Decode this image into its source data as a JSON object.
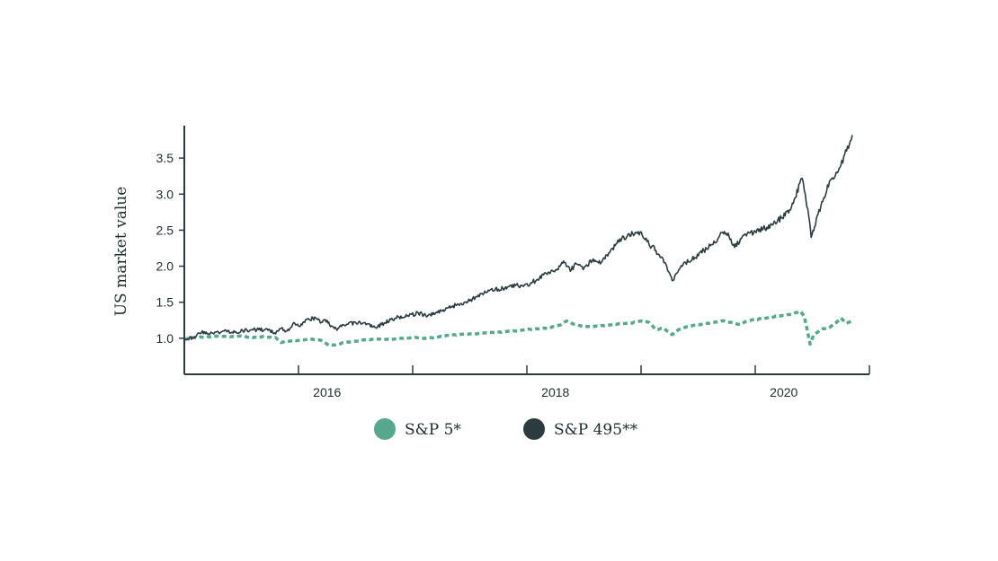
{
  "colors": {
    "sp5": "#55a88e",
    "sp495": "#2c3b3f",
    "axis": "#2c3b3f",
    "background": "#ffffff"
  },
  "chart_data": {
    "type": "line",
    "title": "",
    "xlabel": "",
    "ylabel": "US market value",
    "xlim": [
      2014.75,
      2020.75
    ],
    "ylim": [
      0.5,
      3.95
    ],
    "y_ticks": [
      1.0,
      1.5,
      2.0,
      2.5,
      3.0,
      3.5
    ],
    "y_tick_labels": [
      "1.0",
      "1.5",
      "2.0",
      "2.5",
      "3.0",
      "3.5"
    ],
    "x_ticks": [
      2015.75,
      2016.75,
      2017.75,
      2018.75,
      2019.75,
      2020.75
    ],
    "x_tick_labels": [
      {
        "value": 2016,
        "label": "2016"
      },
      {
        "value": 2018,
        "label": "2018"
      },
      {
        "value": 2020,
        "label": "2020"
      }
    ],
    "grid": false,
    "legend_position": "bottom-center",
    "legend": [
      "S&P 5*",
      "S&P 495**"
    ],
    "series": [
      {
        "name": "S&P 5*",
        "style": "dashed",
        "color": "#55a88e",
        "points": [
          [
            2014.75,
            0.99
          ],
          [
            2014.85,
            1.01
          ],
          [
            2014.95,
            1.02
          ],
          [
            2015.05,
            1.03
          ],
          [
            2015.15,
            1.02
          ],
          [
            2015.25,
            1.03
          ],
          [
            2015.35,
            1.01
          ],
          [
            2015.45,
            1.02
          ],
          [
            2015.55,
            1.01
          ],
          [
            2015.6,
            0.94
          ],
          [
            2015.65,
            0.96
          ],
          [
            2015.75,
            0.97
          ],
          [
            2015.85,
            0.99
          ],
          [
            2015.95,
            0.97
          ],
          [
            2016.02,
            0.9
          ],
          [
            2016.08,
            0.91
          ],
          [
            2016.15,
            0.94
          ],
          [
            2016.25,
            0.96
          ],
          [
            2016.35,
            0.98
          ],
          [
            2016.45,
            0.99
          ],
          [
            2016.55,
            0.98
          ],
          [
            2016.65,
            1.0
          ],
          [
            2016.75,
            1.01
          ],
          [
            2016.85,
            1.0
          ],
          [
            2016.95,
            1.01
          ],
          [
            2017.05,
            1.04
          ],
          [
            2017.15,
            1.05
          ],
          [
            2017.25,
            1.06
          ],
          [
            2017.35,
            1.07
          ],
          [
            2017.45,
            1.08
          ],
          [
            2017.55,
            1.09
          ],
          [
            2017.65,
            1.1
          ],
          [
            2017.75,
            1.12
          ],
          [
            2017.85,
            1.13
          ],
          [
            2017.95,
            1.14
          ],
          [
            2018.0,
            1.17
          ],
          [
            2018.05,
            1.19
          ],
          [
            2018.1,
            1.24
          ],
          [
            2018.15,
            1.2
          ],
          [
            2018.2,
            1.18
          ],
          [
            2018.25,
            1.16
          ],
          [
            2018.35,
            1.17
          ],
          [
            2018.45,
            1.18
          ],
          [
            2018.55,
            1.2
          ],
          [
            2018.65,
            1.21
          ],
          [
            2018.75,
            1.24
          ],
          [
            2018.82,
            1.22
          ],
          [
            2018.88,
            1.12
          ],
          [
            2018.95,
            1.14
          ],
          [
            2019.02,
            1.05
          ],
          [
            2019.08,
            1.12
          ],
          [
            2019.15,
            1.16
          ],
          [
            2019.25,
            1.19
          ],
          [
            2019.35,
            1.21
          ],
          [
            2019.45,
            1.24
          ],
          [
            2019.55,
            1.22
          ],
          [
            2019.62,
            1.19
          ],
          [
            2019.68,
            1.24
          ],
          [
            2019.75,
            1.26
          ],
          [
            2019.85,
            1.28
          ],
          [
            2019.95,
            1.31
          ],
          [
            2020.05,
            1.33
          ],
          [
            2020.12,
            1.36
          ],
          [
            2020.15,
            1.37
          ],
          [
            2020.18,
            1.3
          ],
          [
            2020.21,
            1.08
          ],
          [
            2020.23,
            0.92
          ],
          [
            2020.26,
            1.04
          ],
          [
            2020.32,
            1.12
          ],
          [
            2020.4,
            1.15
          ],
          [
            2020.46,
            1.22
          ],
          [
            2020.5,
            1.28
          ],
          [
            2020.55,
            1.21
          ],
          [
            2020.6,
            1.24
          ]
        ]
      },
      {
        "name": "S&P 495**",
        "style": "solid",
        "color": "#2c3b3f",
        "points": [
          [
            2014.75,
            0.99
          ],
          [
            2014.82,
            1.01
          ],
          [
            2014.9,
            1.08
          ],
          [
            2015.0,
            1.07
          ],
          [
            2015.1,
            1.1
          ],
          [
            2015.2,
            1.09
          ],
          [
            2015.3,
            1.11
          ],
          [
            2015.4,
            1.12
          ],
          [
            2015.5,
            1.11
          ],
          [
            2015.55,
            1.06
          ],
          [
            2015.6,
            1.14
          ],
          [
            2015.65,
            1.1
          ],
          [
            2015.7,
            1.2
          ],
          [
            2015.75,
            1.17
          ],
          [
            2015.82,
            1.26
          ],
          [
            2015.9,
            1.28
          ],
          [
            2015.95,
            1.22
          ],
          [
            2016.0,
            1.25
          ],
          [
            2016.03,
            1.16
          ],
          [
            2016.08,
            1.13
          ],
          [
            2016.15,
            1.18
          ],
          [
            2016.25,
            1.22
          ],
          [
            2016.35,
            1.2
          ],
          [
            2016.42,
            1.15
          ],
          [
            2016.5,
            1.21
          ],
          [
            2016.6,
            1.28
          ],
          [
            2016.7,
            1.31
          ],
          [
            2016.8,
            1.35
          ],
          [
            2016.88,
            1.31
          ],
          [
            2016.95,
            1.35
          ],
          [
            2017.05,
            1.42
          ],
          [
            2017.15,
            1.47
          ],
          [
            2017.25,
            1.52
          ],
          [
            2017.3,
            1.57
          ],
          [
            2017.35,
            1.62
          ],
          [
            2017.42,
            1.66
          ],
          [
            2017.5,
            1.68
          ],
          [
            2017.58,
            1.71
          ],
          [
            2017.65,
            1.73
          ],
          [
            2017.72,
            1.72
          ],
          [
            2017.8,
            1.78
          ],
          [
            2017.86,
            1.83
          ],
          [
            2017.92,
            1.9
          ],
          [
            2018.0,
            1.95
          ],
          [
            2018.08,
            2.05
          ],
          [
            2018.13,
            1.93
          ],
          [
            2018.18,
            2.04
          ],
          [
            2018.25,
            1.97
          ],
          [
            2018.33,
            2.1
          ],
          [
            2018.4,
            2.05
          ],
          [
            2018.5,
            2.25
          ],
          [
            2018.58,
            2.38
          ],
          [
            2018.63,
            2.42
          ],
          [
            2018.7,
            2.47
          ],
          [
            2018.76,
            2.43
          ],
          [
            2018.82,
            2.3
          ],
          [
            2018.88,
            2.22
          ],
          [
            2018.95,
            2.05
          ],
          [
            2019.0,
            1.9
          ],
          [
            2019.03,
            1.8
          ],
          [
            2019.08,
            1.95
          ],
          [
            2019.14,
            2.05
          ],
          [
            2019.22,
            2.12
          ],
          [
            2019.3,
            2.22
          ],
          [
            2019.38,
            2.3
          ],
          [
            2019.43,
            2.4
          ],
          [
            2019.48,
            2.48
          ],
          [
            2019.52,
            2.42
          ],
          [
            2019.57,
            2.26
          ],
          [
            2019.62,
            2.38
          ],
          [
            2019.68,
            2.45
          ],
          [
            2019.75,
            2.48
          ],
          [
            2019.82,
            2.52
          ],
          [
            2019.9,
            2.57
          ],
          [
            2019.98,
            2.67
          ],
          [
            2020.05,
            2.78
          ],
          [
            2020.1,
            2.95
          ],
          [
            2020.14,
            3.15
          ],
          [
            2020.16,
            3.22
          ],
          [
            2020.18,
            3.05
          ],
          [
            2020.21,
            2.8
          ],
          [
            2020.24,
            2.4
          ],
          [
            2020.27,
            2.55
          ],
          [
            2020.3,
            2.72
          ],
          [
            2020.35,
            2.95
          ],
          [
            2020.4,
            3.18
          ],
          [
            2020.45,
            3.25
          ],
          [
            2020.5,
            3.4
          ],
          [
            2020.55,
            3.6
          ],
          [
            2020.6,
            3.82
          ]
        ]
      }
    ]
  }
}
